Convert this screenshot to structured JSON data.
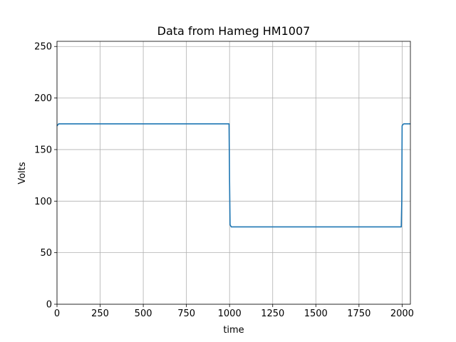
{
  "chart_data": {
    "type": "line",
    "title": "Data from Hameg HM1007",
    "xlabel": "time",
    "ylabel": "Volts",
    "xlim": [
      0,
      2048
    ],
    "ylim": [
      0,
      255
    ],
    "xticks": [
      0,
      250,
      500,
      750,
      1000,
      1250,
      1500,
      1750,
      2000
    ],
    "yticks": [
      0,
      50,
      100,
      150,
      200,
      250
    ],
    "grid": true,
    "series_color": "#1f77b4",
    "series": [
      {
        "x": [
          0,
          10,
          20,
          995,
          997,
          1000,
          1003,
          1010,
          1990,
          1995,
          1998,
          2000,
          2003,
          2010,
          2048
        ],
        "values": [
          173,
          175,
          175,
          175,
          175,
          120,
          77,
          75,
          75,
          75,
          100,
          173,
          174,
          175,
          175
        ]
      }
    ]
  }
}
